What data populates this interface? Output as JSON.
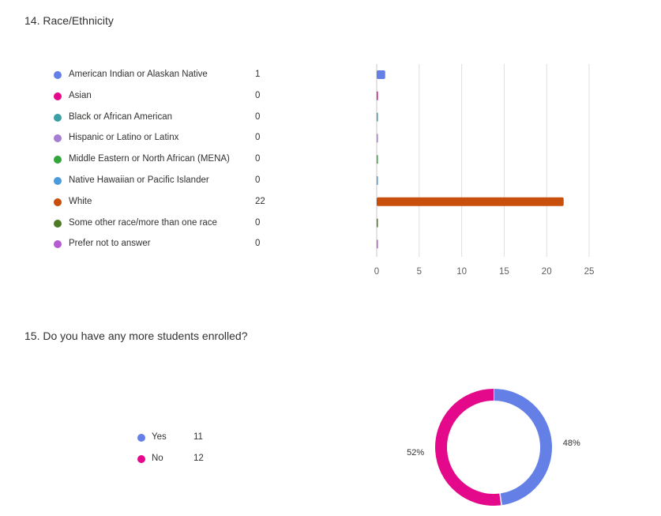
{
  "questions": [
    {
      "title": "14. Race/Ethnicity"
    },
    {
      "title": "15. Do you have any more students enrolled?"
    }
  ],
  "chart_data": [
    {
      "type": "bar",
      "orientation": "horizontal",
      "categories": [
        "American Indian or Alaskan Native",
        "Asian",
        "Black or African American",
        "Hispanic or Latino or Latinx",
        "Middle Eastern or North African (MENA)",
        "Native Hawaiian or Pacific Islander",
        "White",
        "Some other race/more than one race",
        "Prefer not to answer"
      ],
      "values": [
        1,
        0,
        0,
        0,
        0,
        0,
        22,
        0,
        0
      ],
      "colors": [
        "#6480e6",
        "#e3098a",
        "#3b9fa6",
        "#a57ed1",
        "#31a63b",
        "#4a9bdc",
        "#c84f0b",
        "#4e7a25",
        "#b65ad3"
      ],
      "xlim": [
        0,
        25
      ],
      "xticks": [
        0,
        5,
        10,
        15,
        20,
        25
      ],
      "grid": true,
      "legend": "left"
    },
    {
      "type": "pie",
      "donut": true,
      "categories": [
        "Yes",
        "No"
      ],
      "values": [
        11,
        12
      ],
      "percent_labels": [
        "48%",
        "52%"
      ],
      "colors": [
        "#6480e6",
        "#e3098a"
      ],
      "legend": "left"
    }
  ]
}
